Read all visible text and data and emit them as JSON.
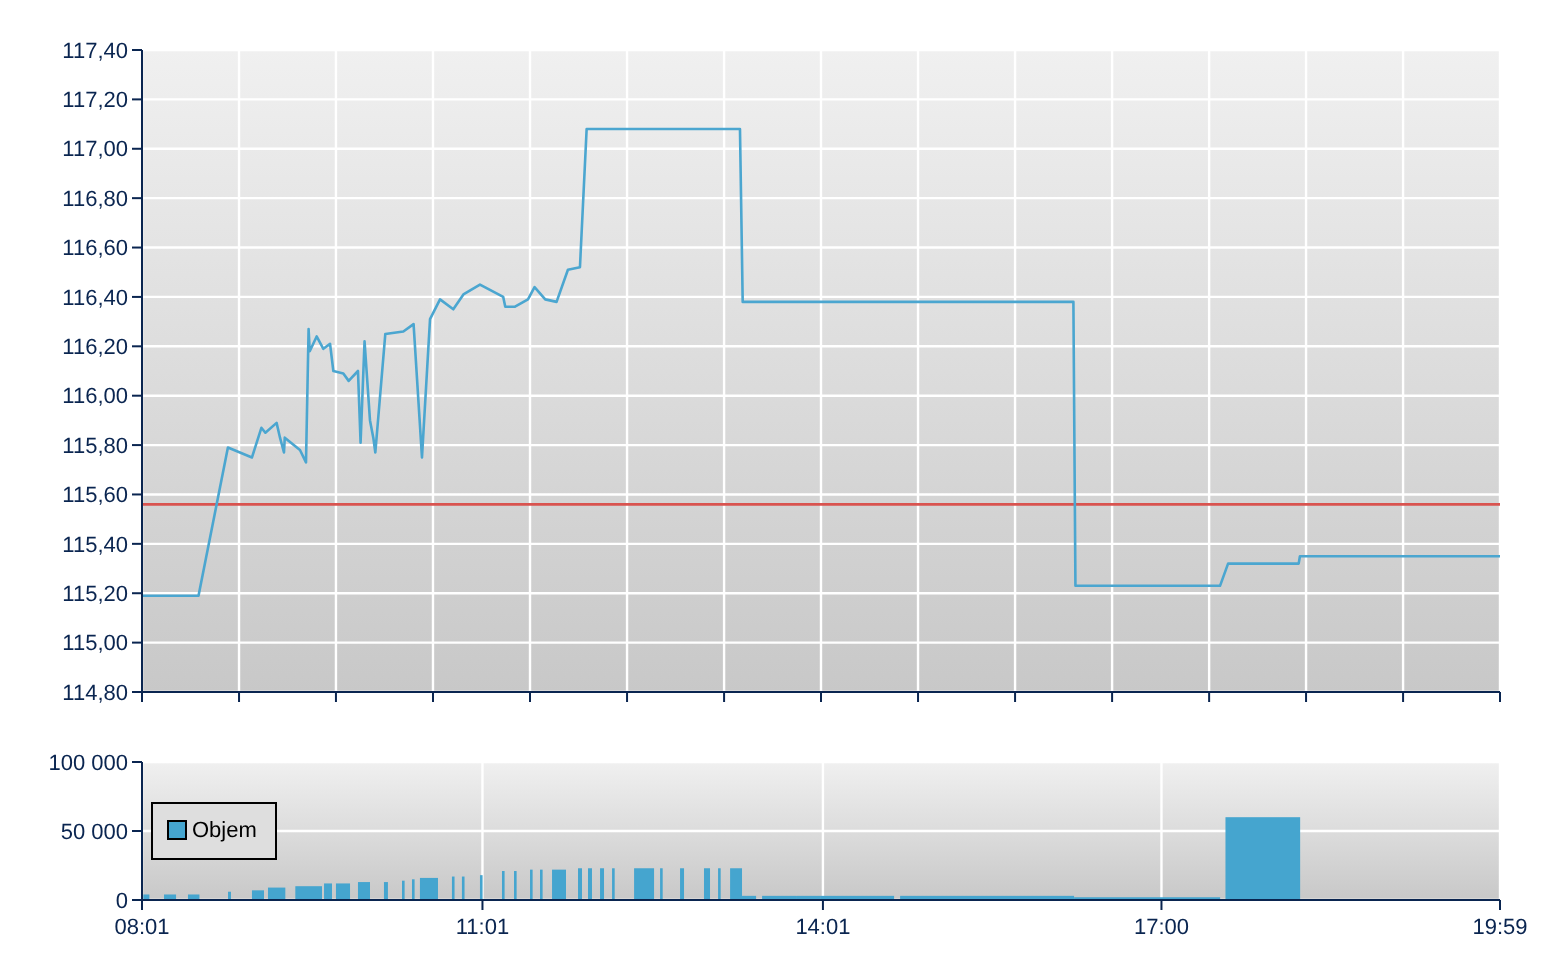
{
  "chart_data": [
    {
      "type": "line",
      "xlim": [
        8.017,
        19.983
      ],
      "ylim": [
        114.8,
        117.4
      ],
      "xticks": [
        {
          "value": 8.017,
          "label": null
        },
        {
          "value": 8.872,
          "label": null
        },
        {
          "value": 9.726,
          "label": null
        },
        {
          "value": 10.581,
          "label": null
        },
        {
          "value": 11.436,
          "label": null
        },
        {
          "value": 12.291,
          "label": null
        },
        {
          "value": 13.146,
          "label": null
        },
        {
          "value": 14.0,
          "label": null
        },
        {
          "value": 14.855,
          "label": null
        },
        {
          "value": 15.71,
          "label": null
        },
        {
          "value": 16.565,
          "label": null
        },
        {
          "value": 17.42,
          "label": null
        },
        {
          "value": 18.274,
          "label": null
        },
        {
          "value": 19.129,
          "label": null
        },
        {
          "value": 19.983,
          "label": null
        }
      ],
      "yticks": [
        {
          "value": 114.8,
          "label": "114,80"
        },
        {
          "value": 115.0,
          "label": "115,00"
        },
        {
          "value": 115.2,
          "label": "115,20"
        },
        {
          "value": 115.4,
          "label": "115,40"
        },
        {
          "value": 115.6,
          "label": "115,60"
        },
        {
          "value": 115.8,
          "label": "115,80"
        },
        {
          "value": 116.0,
          "label": "116,00"
        },
        {
          "value": 116.2,
          "label": "116,20"
        },
        {
          "value": 116.4,
          "label": "116,40"
        },
        {
          "value": 116.6,
          "label": "116,60"
        },
        {
          "value": 116.8,
          "label": "116,80"
        },
        {
          "value": 117.0,
          "label": "117,00"
        },
        {
          "value": 117.2,
          "label": "117,20"
        },
        {
          "value": 117.4,
          "label": "117,40"
        }
      ],
      "tick_labels": "y",
      "grid": true,
      "ref_lines": [
        {
          "axis": "y",
          "value": 115.56,
          "color": "#d9534f"
        }
      ],
      "series": [
        {
          "color": "#4ba6d0",
          "x": [
            8.017,
            8.515,
            8.774,
            8.986,
            9.069,
            9.104,
            9.203,
            9.233,
            9.268,
            9.275,
            9.409,
            9.462,
            9.485,
            9.495,
            9.556,
            9.615,
            9.674,
            9.703,
            9.791,
            9.838,
            9.92,
            9.943,
            9.978,
            10.026,
            10.055,
            10.073,
            10.161,
            10.32,
            10.41,
            10.484,
            10.555,
            10.643,
            10.76,
            10.849,
            10.995,
            11.2,
            11.218,
            11.3,
            11.418,
            11.476,
            11.57,
            11.67,
            11.77,
            11.876,
            11.935,
            13.286,
            13.31,
            16.224,
            16.242,
            17.516,
            17.587,
            18.209,
            18.22,
            19.983
          ],
          "values": [
            115.19,
            115.19,
            115.79,
            115.75,
            115.87,
            115.85,
            115.89,
            115.83,
            115.77,
            115.83,
            115.78,
            115.73,
            116.27,
            116.18,
            116.24,
            116.19,
            116.21,
            116.1,
            116.09,
            116.06,
            116.1,
            115.81,
            116.22,
            115.9,
            115.83,
            115.77,
            116.25,
            116.26,
            116.29,
            115.75,
            116.31,
            116.39,
            116.35,
            116.41,
            116.45,
            116.4,
            116.36,
            116.36,
            116.39,
            116.44,
            116.39,
            116.38,
            116.51,
            116.52,
            117.08,
            117.08,
            116.38,
            116.38,
            115.23,
            115.23,
            115.32,
            115.32,
            115.35,
            115.35
          ]
        }
      ]
    },
    {
      "type": "histogram",
      "xlim": [
        8.017,
        19.983
      ],
      "ylim": [
        0,
        100000
      ],
      "xticks": [
        {
          "value": 8.017,
          "label": "08:01"
        },
        {
          "value": 11.017,
          "label": "11:01"
        },
        {
          "value": 14.017,
          "label": "14:01"
        },
        {
          "value": 17.0,
          "label": "17:00"
        },
        {
          "value": 19.983,
          "label": "19:59"
        }
      ],
      "yticks": [
        0,
        {
          "value": 50000,
          "label": "50 000"
        },
        {
          "value": 100000,
          "label": "100 000"
        }
      ],
      "grid": true,
      "legend": "left",
      "bins": [
        8.029,
        8.082,
        8.211,
        8.317,
        8.422,
        8.523,
        8.775,
        8.801,
        8.986,
        9.092,
        9.127,
        9.28,
        9.368,
        9.603,
        9.621,
        9.691,
        9.726,
        9.85,
        9.92,
        10.026,
        10.149,
        10.184,
        10.308,
        10.331,
        10.396,
        10.419,
        10.466,
        10.625,
        10.748,
        10.771,
        10.836,
        10.859,
        10.995,
        11.018,
        11.189,
        11.212,
        11.295,
        11.318,
        11.436,
        11.459,
        11.524,
        11.547,
        11.63,
        11.753,
        11.859,
        11.894,
        11.947,
        11.982,
        12.053,
        12.088,
        12.159,
        12.182,
        12.353,
        12.529,
        12.582,
        12.605,
        12.758,
        12.793,
        12.969,
        13.022,
        13.093,
        13.116,
        13.199,
        13.304,
        13.428,
        13.481,
        13.78,
        13.992,
        14.644,
        14.697,
        16.23,
        17.517,
        17.564,
        18.222
      ],
      "series": [
        {
          "name": "Objem",
          "color": "#45a5cf",
          "values": [
            4000,
            0,
            4000,
            0,
            4000,
            0,
            6000,
            0,
            7000,
            0,
            9000,
            0,
            10000,
            0,
            12000,
            0,
            12000,
            0,
            13000,
            0,
            13000,
            0,
            14000,
            0,
            15000,
            0,
            16000,
            0,
            17000,
            0,
            17000,
            0,
            18000,
            0,
            21000,
            0,
            21000,
            0,
            22000,
            0,
            22000,
            0,
            22000,
            0,
            23000,
            0,
            23000,
            0,
            23000,
            0,
            23000,
            0,
            23000,
            0,
            23000,
            0,
            23000,
            0,
            23000,
            0,
            23000,
            0,
            23000,
            3000,
            0,
            3000,
            3000,
            3000,
            0,
            3000,
            2000,
            0,
            60000
          ]
        }
      ]
    }
  ]
}
